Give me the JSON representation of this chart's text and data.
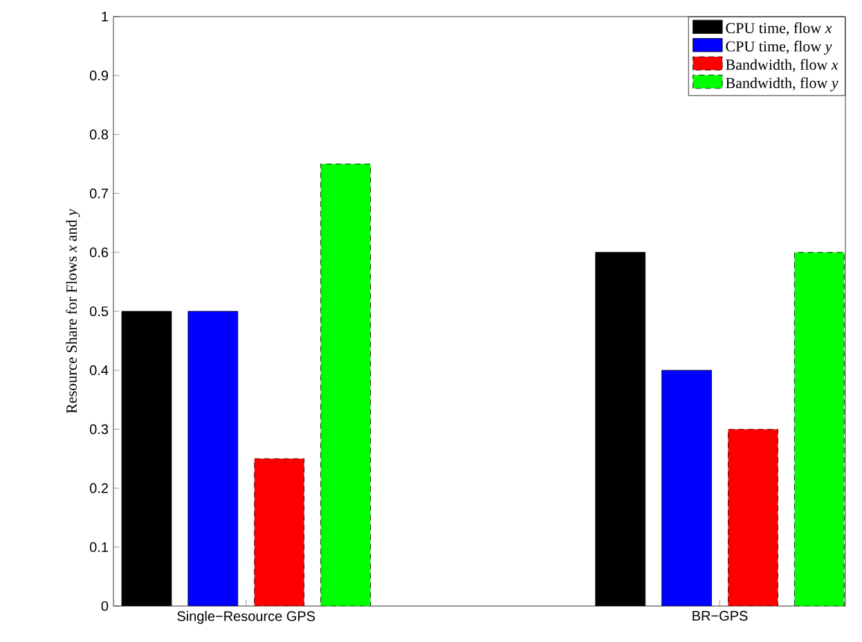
{
  "chart_data": {
    "type": "bar",
    "ylabel": "Resource Share for Flows *x* and *y*",
    "categories": [
      "Single−Resource GPS",
      "BR−GPS"
    ],
    "series": [
      {
        "name": "CPU time, flow *x*",
        "color": "#000000",
        "values": [
          0.5,
          0.6
        ],
        "line_style": "solid"
      },
      {
        "name": "CPU time, flow *y*",
        "color": "#0000ff",
        "values": [
          0.5,
          0.4
        ],
        "line_style": "solid"
      },
      {
        "name": "Bandwidth, flow *x*",
        "color": "#ff0000",
        "values": [
          0.25,
          0.3
        ],
        "line_style": "dashed"
      },
      {
        "name": "Bandwidth, flow *y*",
        "color": "#00ff00",
        "values": [
          0.75,
          0.6
        ],
        "line_style": "dashed"
      }
    ],
    "ylim": [
      0,
      1
    ],
    "yticks": [
      0,
      0.1,
      0.2,
      0.3,
      0.4,
      0.5,
      0.6,
      0.7,
      0.8,
      0.9,
      1
    ],
    "grid": false,
    "legend": "top right"
  }
}
